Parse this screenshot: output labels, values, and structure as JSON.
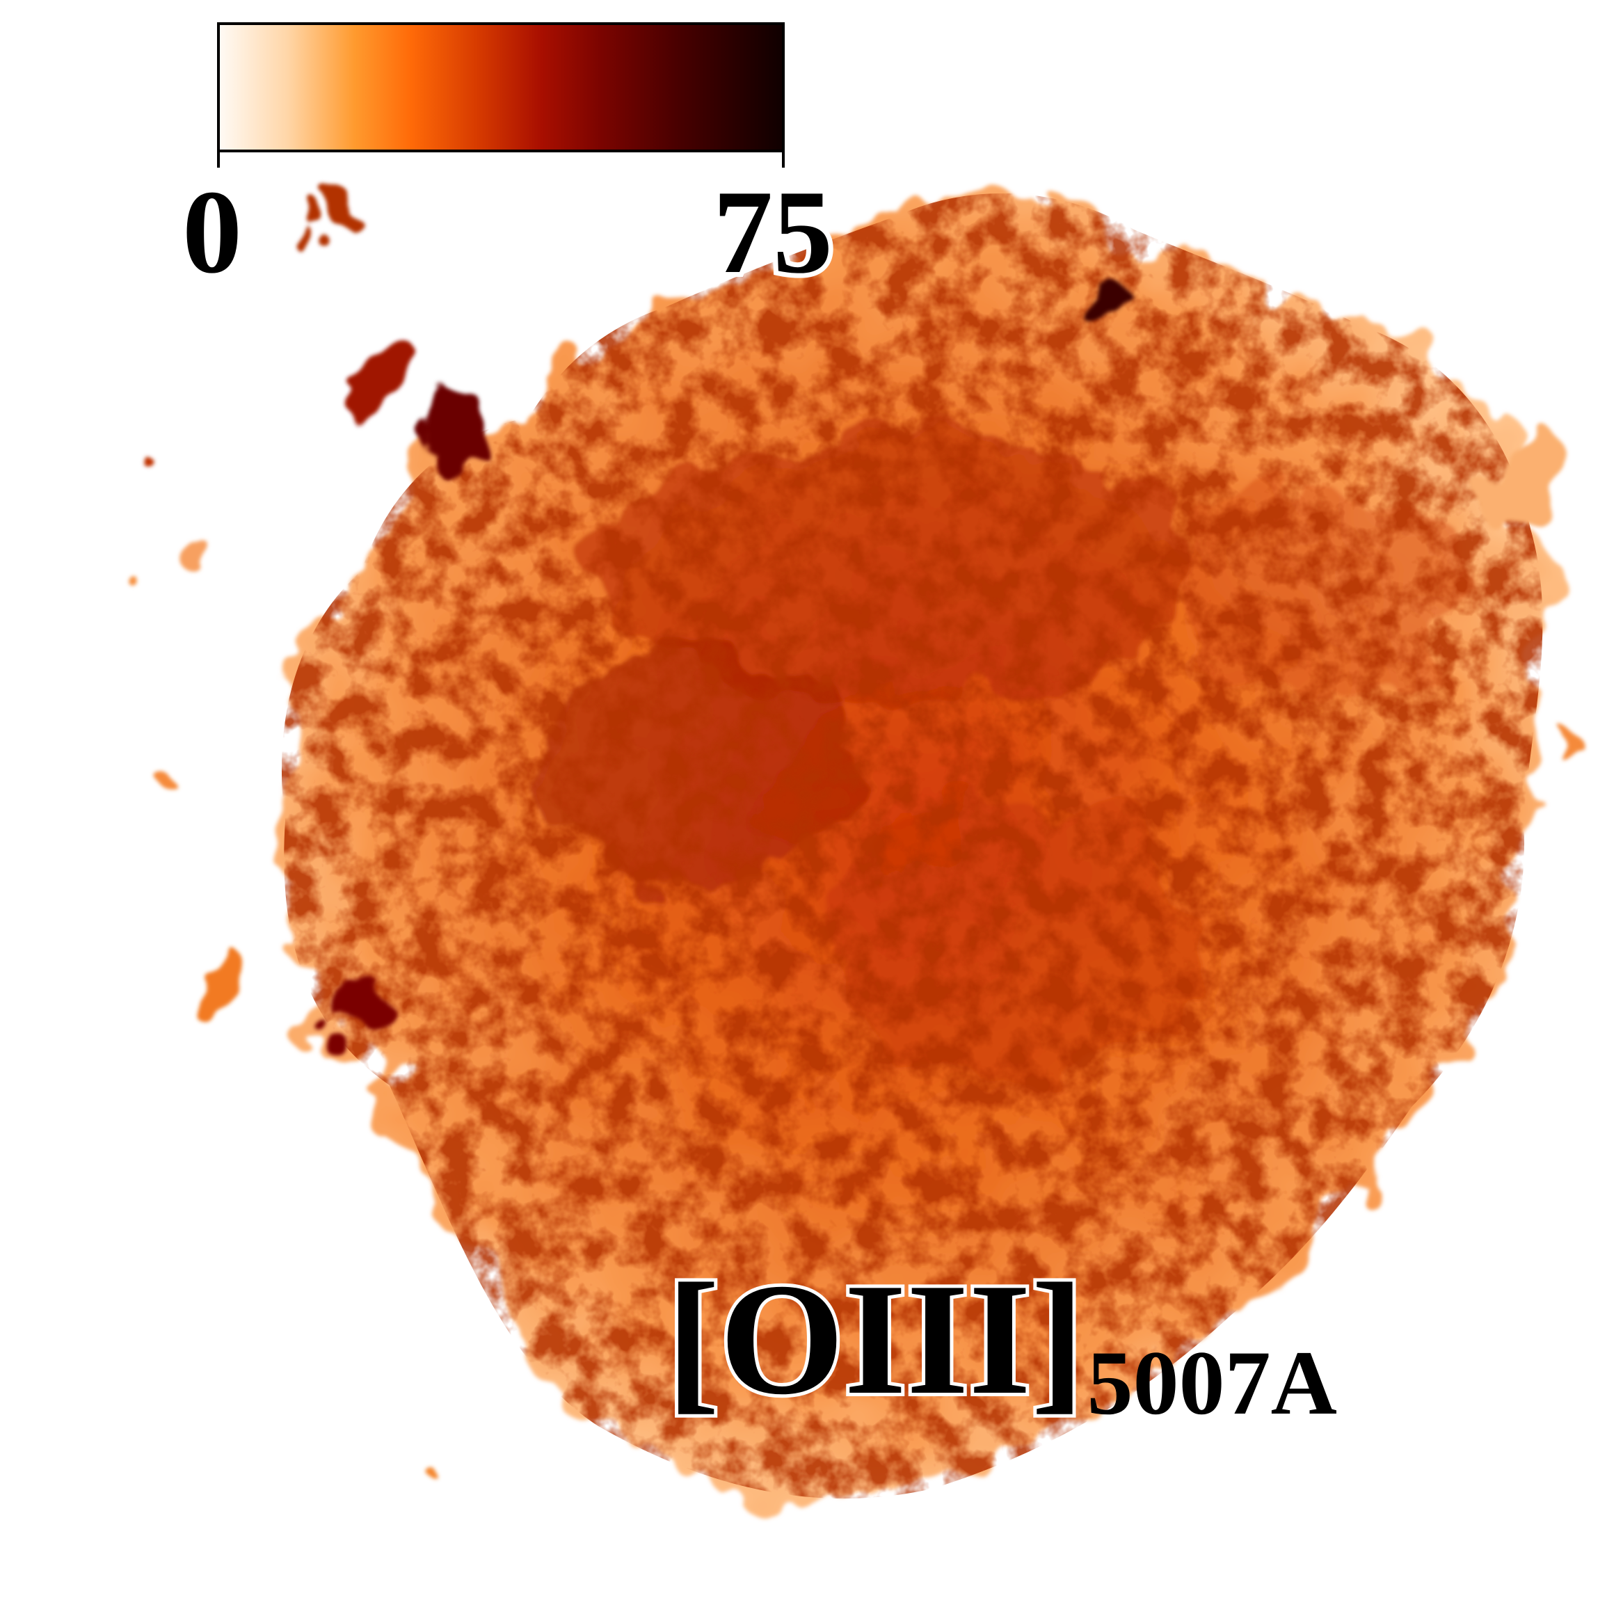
{
  "figure": {
    "emission_line": "[OIII]",
    "wavelength": "5007A"
  },
  "colorbar": {
    "min_label": "0",
    "max_label": "75",
    "colormap": [
      "#fffaf4",
      "#ffd6a8",
      "#ff9a2e",
      "#ff6a08",
      "#d63a00",
      "#a90f00",
      "#7a0400",
      "#470000",
      "#100000"
    ]
  },
  "colors": {
    "background": "#ffffff",
    "text": "#000000"
  }
}
